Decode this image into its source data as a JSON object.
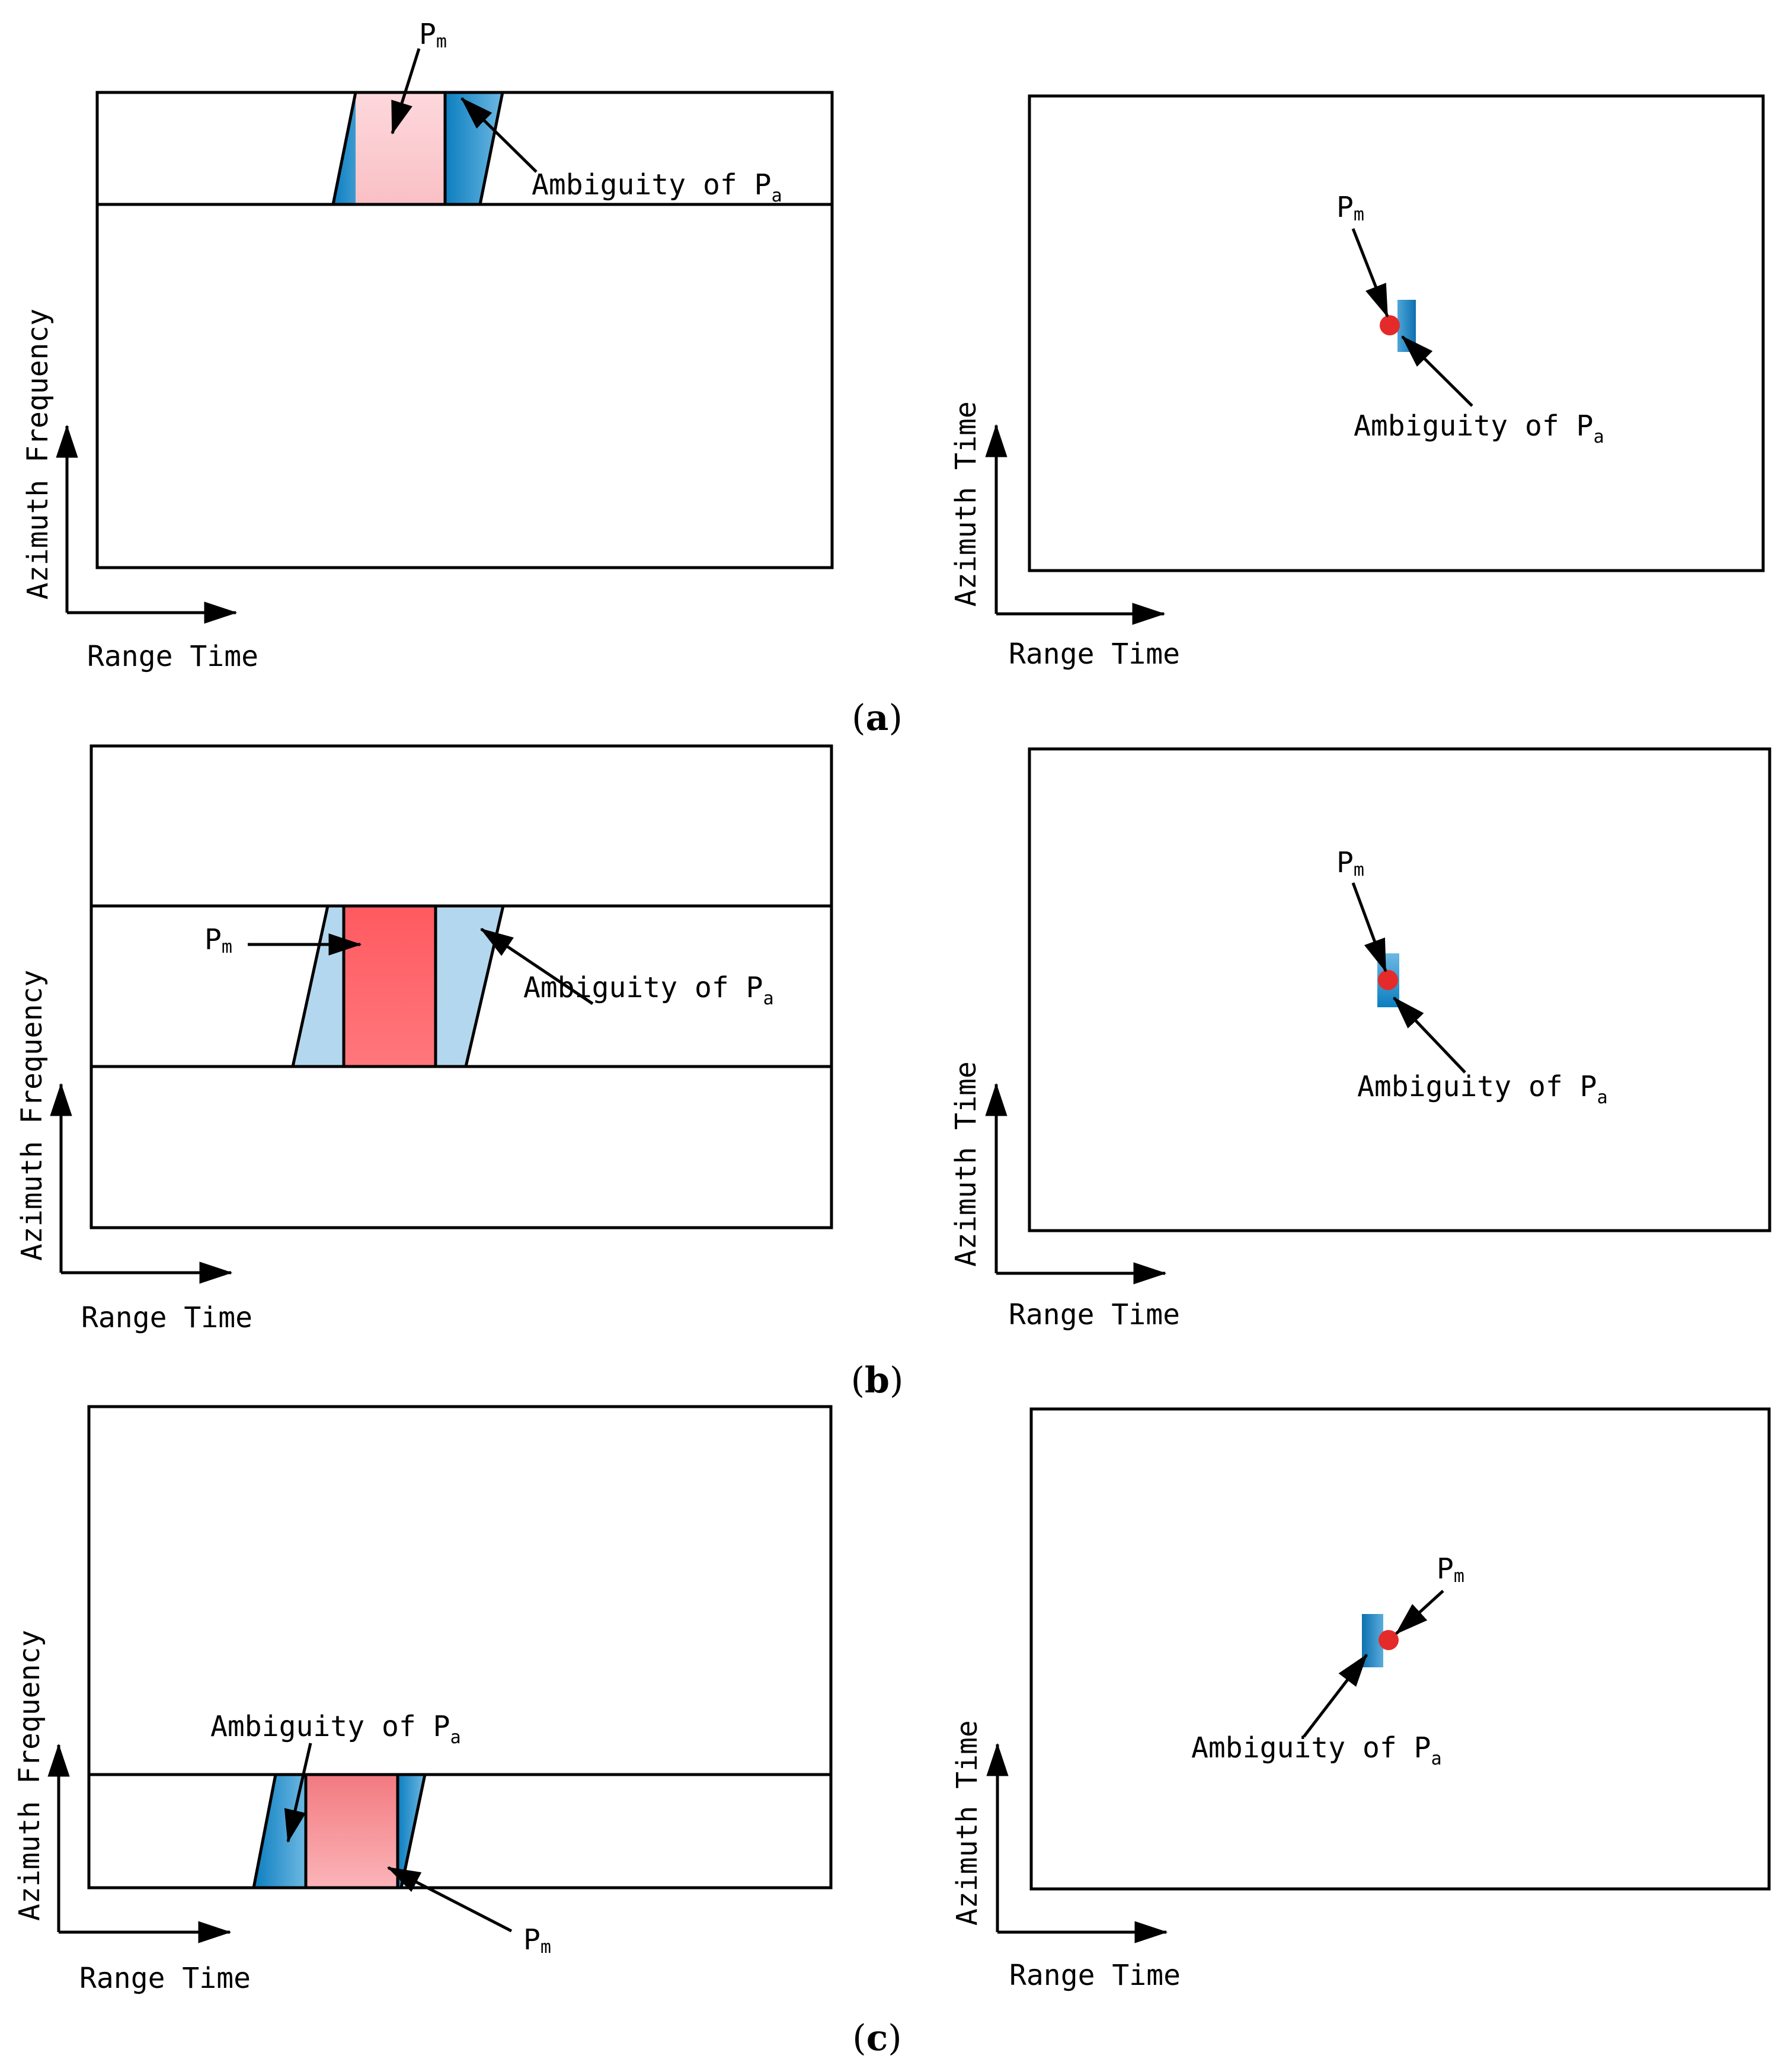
{
  "figure": {
    "axis_labels": {
      "range_time": "Range Time",
      "azimuth_frequency": "Azimuth Frequency",
      "azimuth_time": "Azimuth Time"
    },
    "annotation_main": "P",
    "annotation_main_subscript": "m",
    "annotation_ambiguity": "Ambiguity of P",
    "annotation_ambiguity_subscript": "a",
    "captions": {
      "a_open": "(",
      "a_letter": "a",
      "a_close": ")",
      "b_open": "(",
      "b_letter": "b",
      "b_close": ")",
      "c_open": "(",
      "c_letter": "c",
      "c_close": ")"
    },
    "colors": {
      "main_target_light": "#fdd8dc",
      "main_target_strong": "#ff5a60",
      "ambiguity_dark": "#0c7ec0",
      "ambiguity_light": "#b3d7ee",
      "point_red": "#e52a2a"
    }
  }
}
